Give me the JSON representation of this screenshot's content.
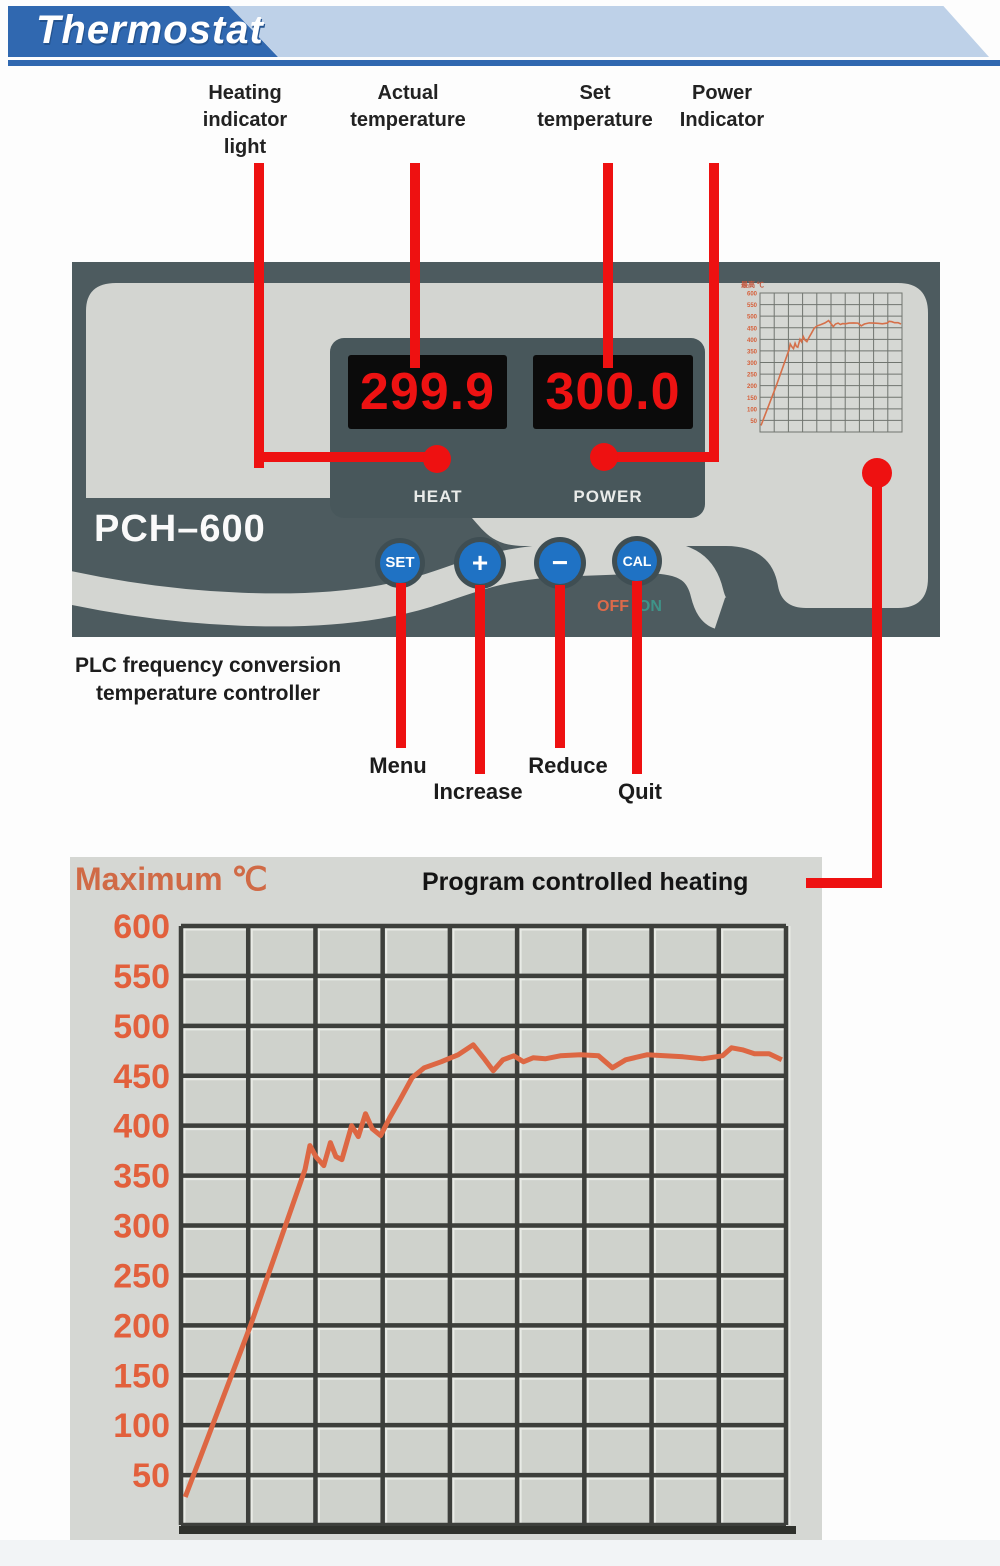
{
  "header": {
    "title": "Thermostat"
  },
  "top_labels": {
    "heating": [
      "Heating",
      "indicator",
      "light"
    ],
    "actual": [
      "Actual",
      "temperature"
    ],
    "set": [
      "Set",
      "temperature"
    ],
    "power": [
      "Power",
      "Indicator"
    ]
  },
  "panel": {
    "model": "PCH–600",
    "actual_display": "299.9",
    "set_display": "300.0",
    "heat_caption": "HEAT",
    "power_caption": "POWER",
    "buttons": {
      "set": "SET",
      "increase": "+",
      "decrease": "−",
      "cal": "CAL"
    },
    "power_switch": {
      "off": "OFF",
      "on": "/ON"
    },
    "mini_chart_title": "最高 ℃"
  },
  "caption": [
    "PLC frequency conversion",
    "temperature controller"
  ],
  "button_annotations": {
    "menu": "Menu",
    "increase": "Increase",
    "reduce": "Reduce",
    "quit": "Quit"
  },
  "chart_data": {
    "type": "line",
    "title": "Program controlled heating",
    "ylabel": "Maximum ℃",
    "ylim": [
      0,
      600
    ],
    "yticks": [
      600,
      550,
      500,
      450,
      400,
      350,
      300,
      250,
      200,
      150,
      100,
      50
    ],
    "x_range": [
      0,
      1
    ],
    "grid": {
      "columns": 9,
      "rows": 12
    },
    "legend": false,
    "series": [
      {
        "name": "program_heating_curve",
        "color": "#dd6743",
        "points": [
          [
            0.007,
            28
          ],
          [
            0.115,
            200
          ],
          [
            0.205,
            356
          ],
          [
            0.213,
            380
          ],
          [
            0.224,
            368
          ],
          [
            0.236,
            360
          ],
          [
            0.247,
            383
          ],
          [
            0.256,
            369
          ],
          [
            0.266,
            366
          ],
          [
            0.282,
            400
          ],
          [
            0.293,
            389
          ],
          [
            0.305,
            412
          ],
          [
            0.316,
            397
          ],
          [
            0.33,
            390
          ],
          [
            0.345,
            408
          ],
          [
            0.362,
            426
          ],
          [
            0.382,
            448
          ],
          [
            0.402,
            458
          ],
          [
            0.43,
            464
          ],
          [
            0.458,
            471
          ],
          [
            0.483,
            481
          ],
          [
            0.5,
            468
          ],
          [
            0.516,
            455
          ],
          [
            0.532,
            466
          ],
          [
            0.55,
            470
          ],
          [
            0.566,
            464
          ],
          [
            0.582,
            468
          ],
          [
            0.602,
            467
          ],
          [
            0.627,
            470
          ],
          [
            0.66,
            471
          ],
          [
            0.69,
            470
          ],
          [
            0.713,
            458
          ],
          [
            0.735,
            466
          ],
          [
            0.77,
            471
          ],
          [
            0.8,
            470
          ],
          [
            0.83,
            469
          ],
          [
            0.862,
            467
          ],
          [
            0.895,
            470
          ],
          [
            0.91,
            478
          ],
          [
            0.928,
            476
          ],
          [
            0.948,
            472
          ],
          [
            0.972,
            472
          ],
          [
            0.993,
            466
          ]
        ]
      }
    ]
  },
  "colors": {
    "accent_red": "#ee1111",
    "led_red": "#ed1212",
    "panel_dark": "#4d5b5f",
    "panel_light": "#d3d5d1",
    "button_blue": "#1f72c4",
    "header_blue": "#3068b0",
    "header_light_blue": "#bed1e8",
    "curve_orange": "#dd6743",
    "tick_orange": "#e2603c",
    "off_orange": "#dd6a4a",
    "on_teal": "#3f9388"
  }
}
